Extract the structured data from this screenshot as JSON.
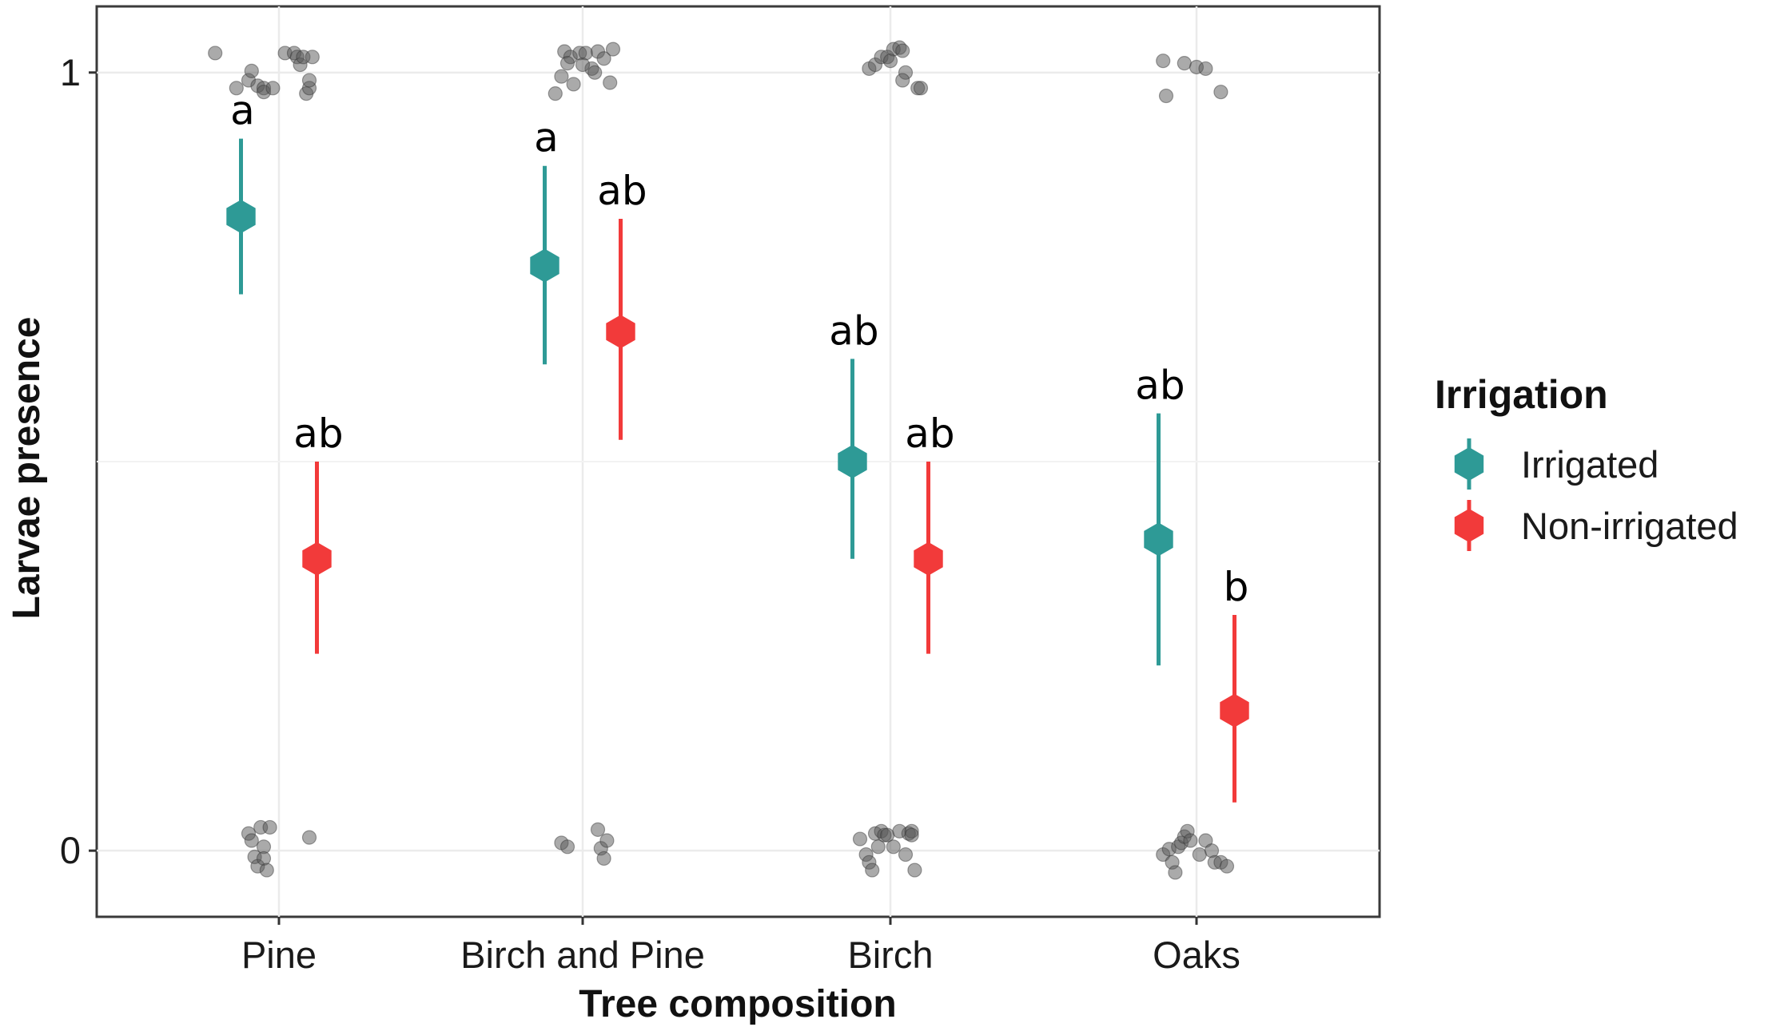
{
  "chart_data": {
    "type": "scatter",
    "xlabel": "Tree composition",
    "ylabel": "Larvae presence",
    "categories": [
      "Pine",
      "Birch and Pine",
      "Birch",
      "Oaks"
    ],
    "ylim": [
      -0.085,
      1.085
    ],
    "y_ticks": [
      {
        "value": 0,
        "label": "0"
      },
      {
        "value": 1,
        "label": "1"
      }
    ],
    "grid": true,
    "legend": {
      "title": "Irrigation",
      "position": "right",
      "entries": [
        "Irrigated",
        "Non-irrigated"
      ]
    },
    "series": [
      {
        "name": "Irrigated",
        "color": "#2E9A96",
        "points": [
          {
            "category": "Pine",
            "y": 0.815,
            "lower": 0.715,
            "upper": 0.915,
            "label": "a"
          },
          {
            "category": "Birch and Pine",
            "y": 0.752,
            "lower": 0.625,
            "upper": 0.88,
            "label": "a"
          },
          {
            "category": "Birch",
            "y": 0.5,
            "lower": 0.375,
            "upper": 0.632,
            "label": "ab"
          },
          {
            "category": "Oaks",
            "y": 0.4,
            "lower": 0.238,
            "upper": 0.562,
            "label": "ab"
          }
        ]
      },
      {
        "name": "Non-irrigated",
        "color": "#F23A3A",
        "points": [
          {
            "category": "Pine",
            "y": 0.375,
            "lower": 0.253,
            "upper": 0.5,
            "label": "ab"
          },
          {
            "category": "Birch and Pine",
            "y": 0.667,
            "lower": 0.528,
            "upper": 0.812,
            "label": "ab"
          },
          {
            "category": "Birch",
            "y": 0.375,
            "lower": 0.253,
            "upper": 0.5,
            "label": "ab"
          },
          {
            "category": "Oaks",
            "y": 0.18,
            "lower": 0.062,
            "upper": 0.303,
            "label": "b"
          }
        ]
      }
    ],
    "raw_observations": {
      "color": "#555555",
      "groups": [
        {
          "category": "Pine",
          "x_jitter": [
            -0.21,
            -0.14,
            -0.1,
            -0.09,
            -0.07,
            -0.05,
            -0.05,
            -0.02,
            0.02,
            0.05,
            0.06,
            0.07,
            0.08,
            0.09,
            0.1,
            0.1,
            0.11
          ],
          "y_values": [
            1,
            1,
            1,
            1,
            1,
            1,
            1,
            1,
            1,
            1,
            1,
            1,
            1,
            1,
            1,
            1,
            1
          ],
          "y_jitter": [
            0.025,
            -0.02,
            -0.01,
            0.002,
            -0.017,
            -0.02,
            -0.025,
            -0.02,
            0.025,
            0.025,
            0.02,
            0.01,
            0.02,
            -0.027,
            -0.02,
            -0.01,
            0.02
          ]
        },
        {
          "category": "Pine",
          "x_jitter": [
            -0.1,
            -0.09,
            -0.08,
            -0.07,
            -0.06,
            -0.05,
            -0.05,
            -0.04,
            -0.03,
            0.1
          ],
          "y_values": [
            0,
            0,
            0,
            0,
            0,
            0,
            0,
            0,
            0,
            0
          ],
          "y_jitter": [
            0.022,
            0.013,
            -0.008,
            -0.02,
            0.03,
            0.005,
            -0.01,
            -0.025,
            0.03,
            0.017
          ]
        },
        {
          "category": "Birch and Pine",
          "x_jitter": [
            -0.09,
            -0.07,
            -0.06,
            -0.04,
            -0.03,
            -0.01,
            0.01,
            0.03,
            0.05,
            0.07,
            0.09,
            0.1,
            -0.05,
            0.0,
            0.04
          ],
          "y_values": [
            1,
            1,
            1,
            1,
            1,
            1,
            1,
            1,
            1,
            1,
            1,
            1,
            1,
            1,
            1
          ],
          "y_jitter": [
            -0.027,
            -0.005,
            0.027,
            0.02,
            -0.015,
            0.025,
            0.025,
            0.005,
            0.027,
            0.018,
            -0.013,
            0.03,
            0.012,
            0.01,
            0.0
          ]
        },
        {
          "category": "Birch and Pine",
          "x_jitter": [
            -0.07,
            -0.05,
            0.05,
            0.06,
            0.07,
            0.08
          ],
          "y_values": [
            0,
            0,
            0,
            0,
            0,
            0
          ],
          "y_jitter": [
            0.01,
            0.005,
            0.027,
            0.003,
            -0.01,
            0.013
          ]
        },
        {
          "category": "Birch",
          "x_jitter": [
            -0.07,
            -0.05,
            -0.03,
            -0.01,
            0.01,
            0.03,
            0.04,
            0.05,
            0.09,
            0.1,
            0.04,
            0.0
          ],
          "y_values": [
            1,
            1,
            1,
            1,
            1,
            1,
            1,
            1,
            1,
            1,
            1,
            1
          ],
          "y_jitter": [
            0.005,
            0.01,
            0.02,
            0.02,
            0.03,
            0.032,
            0.028,
            0.0,
            -0.02,
            -0.02,
            -0.01,
            0.015
          ]
        },
        {
          "category": "Birch",
          "x_jitter": [
            -0.1,
            -0.08,
            -0.07,
            -0.06,
            -0.05,
            -0.04,
            -0.03,
            -0.02,
            -0.01,
            0.01,
            0.03,
            0.05,
            0.06,
            0.07,
            0.07,
            0.08
          ],
          "y_values": [
            0,
            0,
            0,
            0,
            0,
            0,
            0,
            0,
            0,
            0,
            0,
            0,
            0,
            0,
            0,
            0
          ],
          "y_jitter": [
            0.015,
            -0.005,
            -0.015,
            -0.025,
            0.022,
            0.005,
            0.025,
            0.02,
            0.02,
            0.005,
            0.025,
            -0.005,
            0.022,
            0.025,
            0.02,
            -0.025
          ]
        },
        {
          "category": "Oaks",
          "x_jitter": [
            -0.11,
            -0.1,
            -0.04,
            0.0,
            0.03,
            0.08
          ],
          "y_values": [
            1,
            1,
            1,
            1,
            1,
            1
          ],
          "y_jitter": [
            0.015,
            -0.03,
            0.012,
            0.007,
            0.005,
            -0.025
          ]
        },
        {
          "category": "Oaks",
          "x_jitter": [
            -0.11,
            -0.09,
            -0.08,
            -0.07,
            -0.06,
            -0.05,
            -0.04,
            -0.03,
            -0.02,
            0.01,
            0.03,
            0.05,
            0.06,
            0.08,
            0.1
          ],
          "y_values": [
            0,
            0,
            0,
            0,
            0,
            0,
            0,
            0,
            0,
            0,
            0,
            0,
            0,
            0,
            0
          ],
          "y_jitter": [
            -0.005,
            0.002,
            -0.015,
            -0.028,
            0.005,
            0.01,
            0.018,
            0.025,
            0.013,
            -0.005,
            0.013,
            0.0,
            -0.015,
            -0.015,
            -0.02
          ]
        }
      ]
    }
  }
}
